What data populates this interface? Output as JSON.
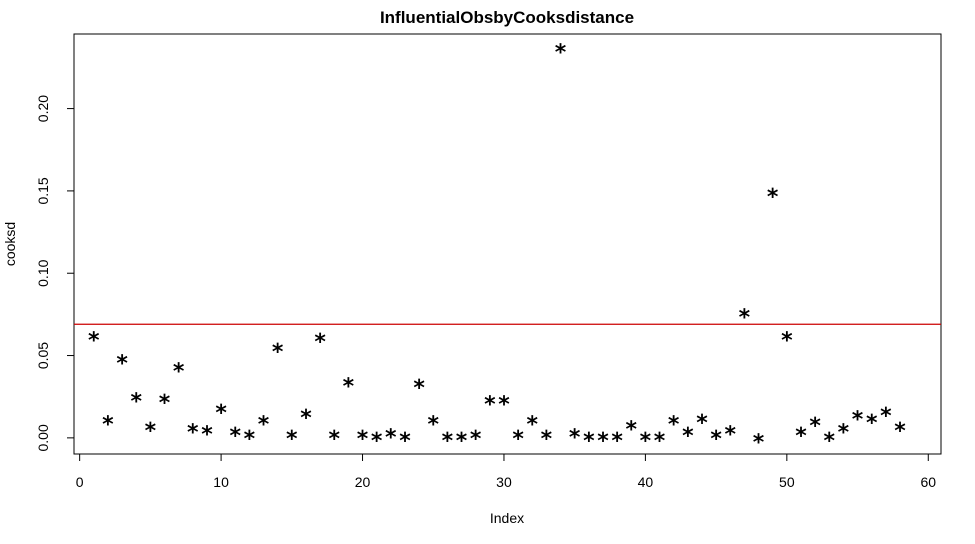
{
  "chart_data": {
    "type": "scatter",
    "title": "InfluentialObsbyCooksdistance",
    "xlabel": "Index",
    "ylabel": "cooksd",
    "xlim": [
      -0.4,
      60.9
    ],
    "ylim": [
      -0.0098,
      0.2453
    ],
    "xticks": [
      0,
      10,
      20,
      30,
      40,
      50,
      60
    ],
    "xtick_labels": [
      "0",
      "10",
      "20",
      "30",
      "40",
      "50",
      "60"
    ],
    "yticks": [
      0,
      0.05,
      0.1,
      0.15,
      0.2
    ],
    "ytick_labels": [
      "0.00",
      "0.05",
      "0.10",
      "0.15",
      "0.20"
    ],
    "marker": "*",
    "marker_color": "#000000",
    "reference_line": {
      "y": 0.069,
      "color": "#cc0000"
    },
    "grid": false,
    "x": [
      1,
      2,
      3,
      4,
      5,
      6,
      7,
      8,
      9,
      10,
      11,
      12,
      13,
      14,
      15,
      16,
      17,
      18,
      19,
      20,
      21,
      22,
      23,
      24,
      25,
      26,
      27,
      28,
      29,
      30,
      31,
      32,
      33,
      34,
      35,
      36,
      37,
      38,
      39,
      40,
      41,
      42,
      43,
      44,
      45,
      46,
      47,
      48,
      49,
      50,
      51,
      52,
      53,
      54,
      55,
      56,
      57,
      58
    ],
    "y": [
      0.061,
      0.01,
      0.047,
      0.024,
      0.006,
      0.023,
      0.042,
      0.005,
      0.004,
      0.017,
      0.003,
      0.001,
      0.01,
      0.054,
      0.001,
      0.014,
      0.06,
      0.001,
      0.033,
      0.001,
      0.0,
      0.002,
      0.0,
      0.032,
      0.01,
      0.0,
      0.0,
      0.001,
      0.022,
      0.022,
      0.001,
      0.01,
      0.001,
      0.236,
      0.002,
      0.0,
      0.0,
      0.0,
      0.007,
      0.0,
      0.0,
      0.01,
      0.003,
      0.011,
      0.001,
      0.004,
      0.075,
      -0.001,
      0.148,
      0.061,
      0.003,
      0.009,
      0.0,
      0.005,
      0.013,
      0.011,
      0.015,
      0.006
    ]
  }
}
